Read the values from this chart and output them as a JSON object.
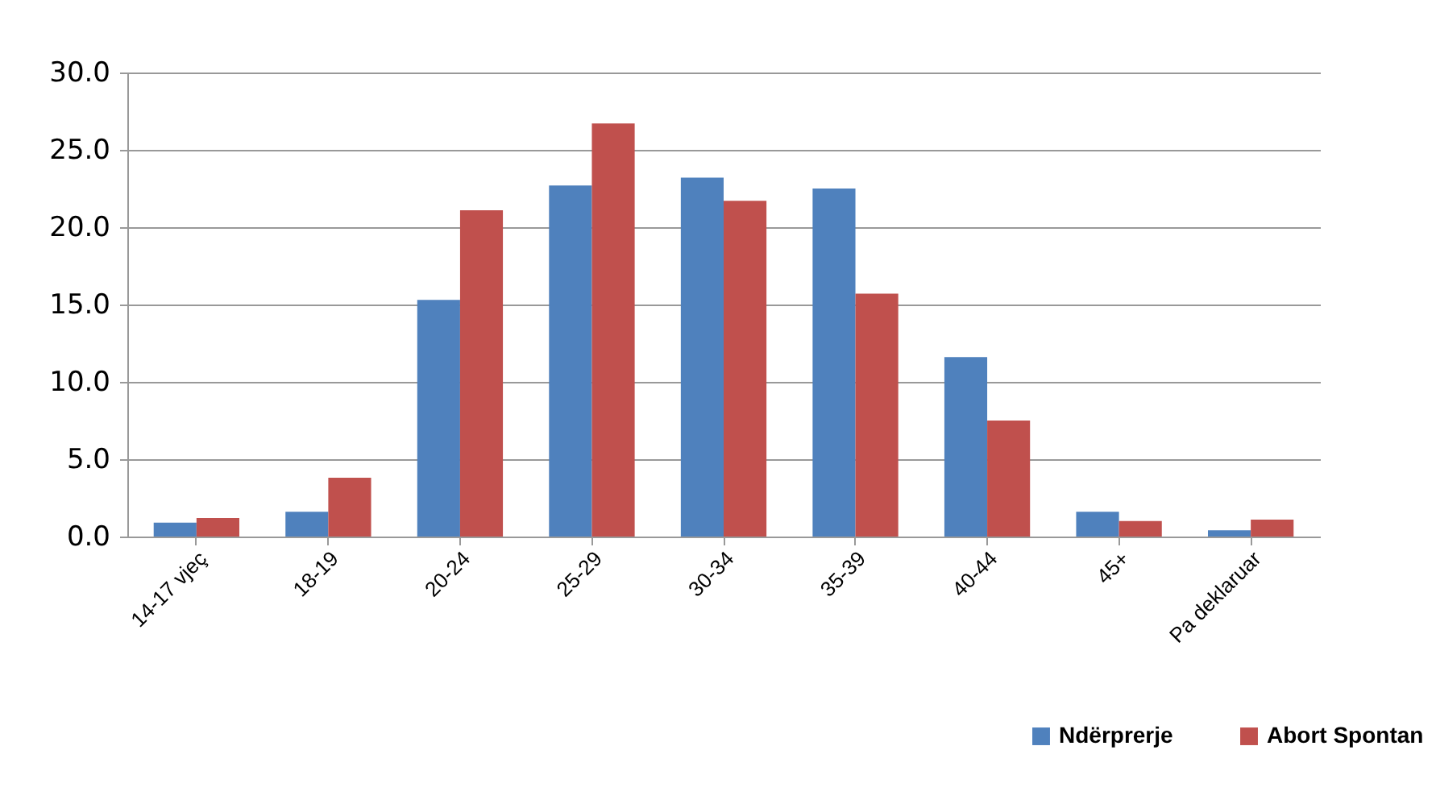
{
  "chart_data": {
    "type": "bar",
    "categories": [
      "14-17 vjeç",
      "18-19",
      "20-24",
      "25-29",
      "30-34",
      "35-39",
      "40-44",
      "45+",
      "Pa deklaruar"
    ],
    "series": [
      {
        "name": "Ndërprerje",
        "color": "#4f81bd",
        "values": [
          0.9,
          1.6,
          15.3,
          22.7,
          23.2,
          22.5,
          11.6,
          1.6,
          0.4
        ]
      },
      {
        "name": "Abort Spontan",
        "color": "#c0504d",
        "values": [
          1.2,
          3.8,
          21.1,
          26.7,
          21.7,
          15.7,
          7.5,
          1.0,
          1.1
        ]
      }
    ],
    "ylim": [
      0,
      30
    ],
    "yticks": [
      {
        "value": 0,
        "label": "0.0"
      },
      {
        "value": 5,
        "label": "5.0"
      },
      {
        "value": 10,
        "label": "10.0"
      },
      {
        "value": 15,
        "label": "15.0"
      },
      {
        "value": 20,
        "label": "20.0"
      },
      {
        "value": 25,
        "label": "25.0"
      },
      {
        "value": 30,
        "label": "30.0"
      }
    ],
    "grid": "y",
    "legend": "bottom right"
  }
}
